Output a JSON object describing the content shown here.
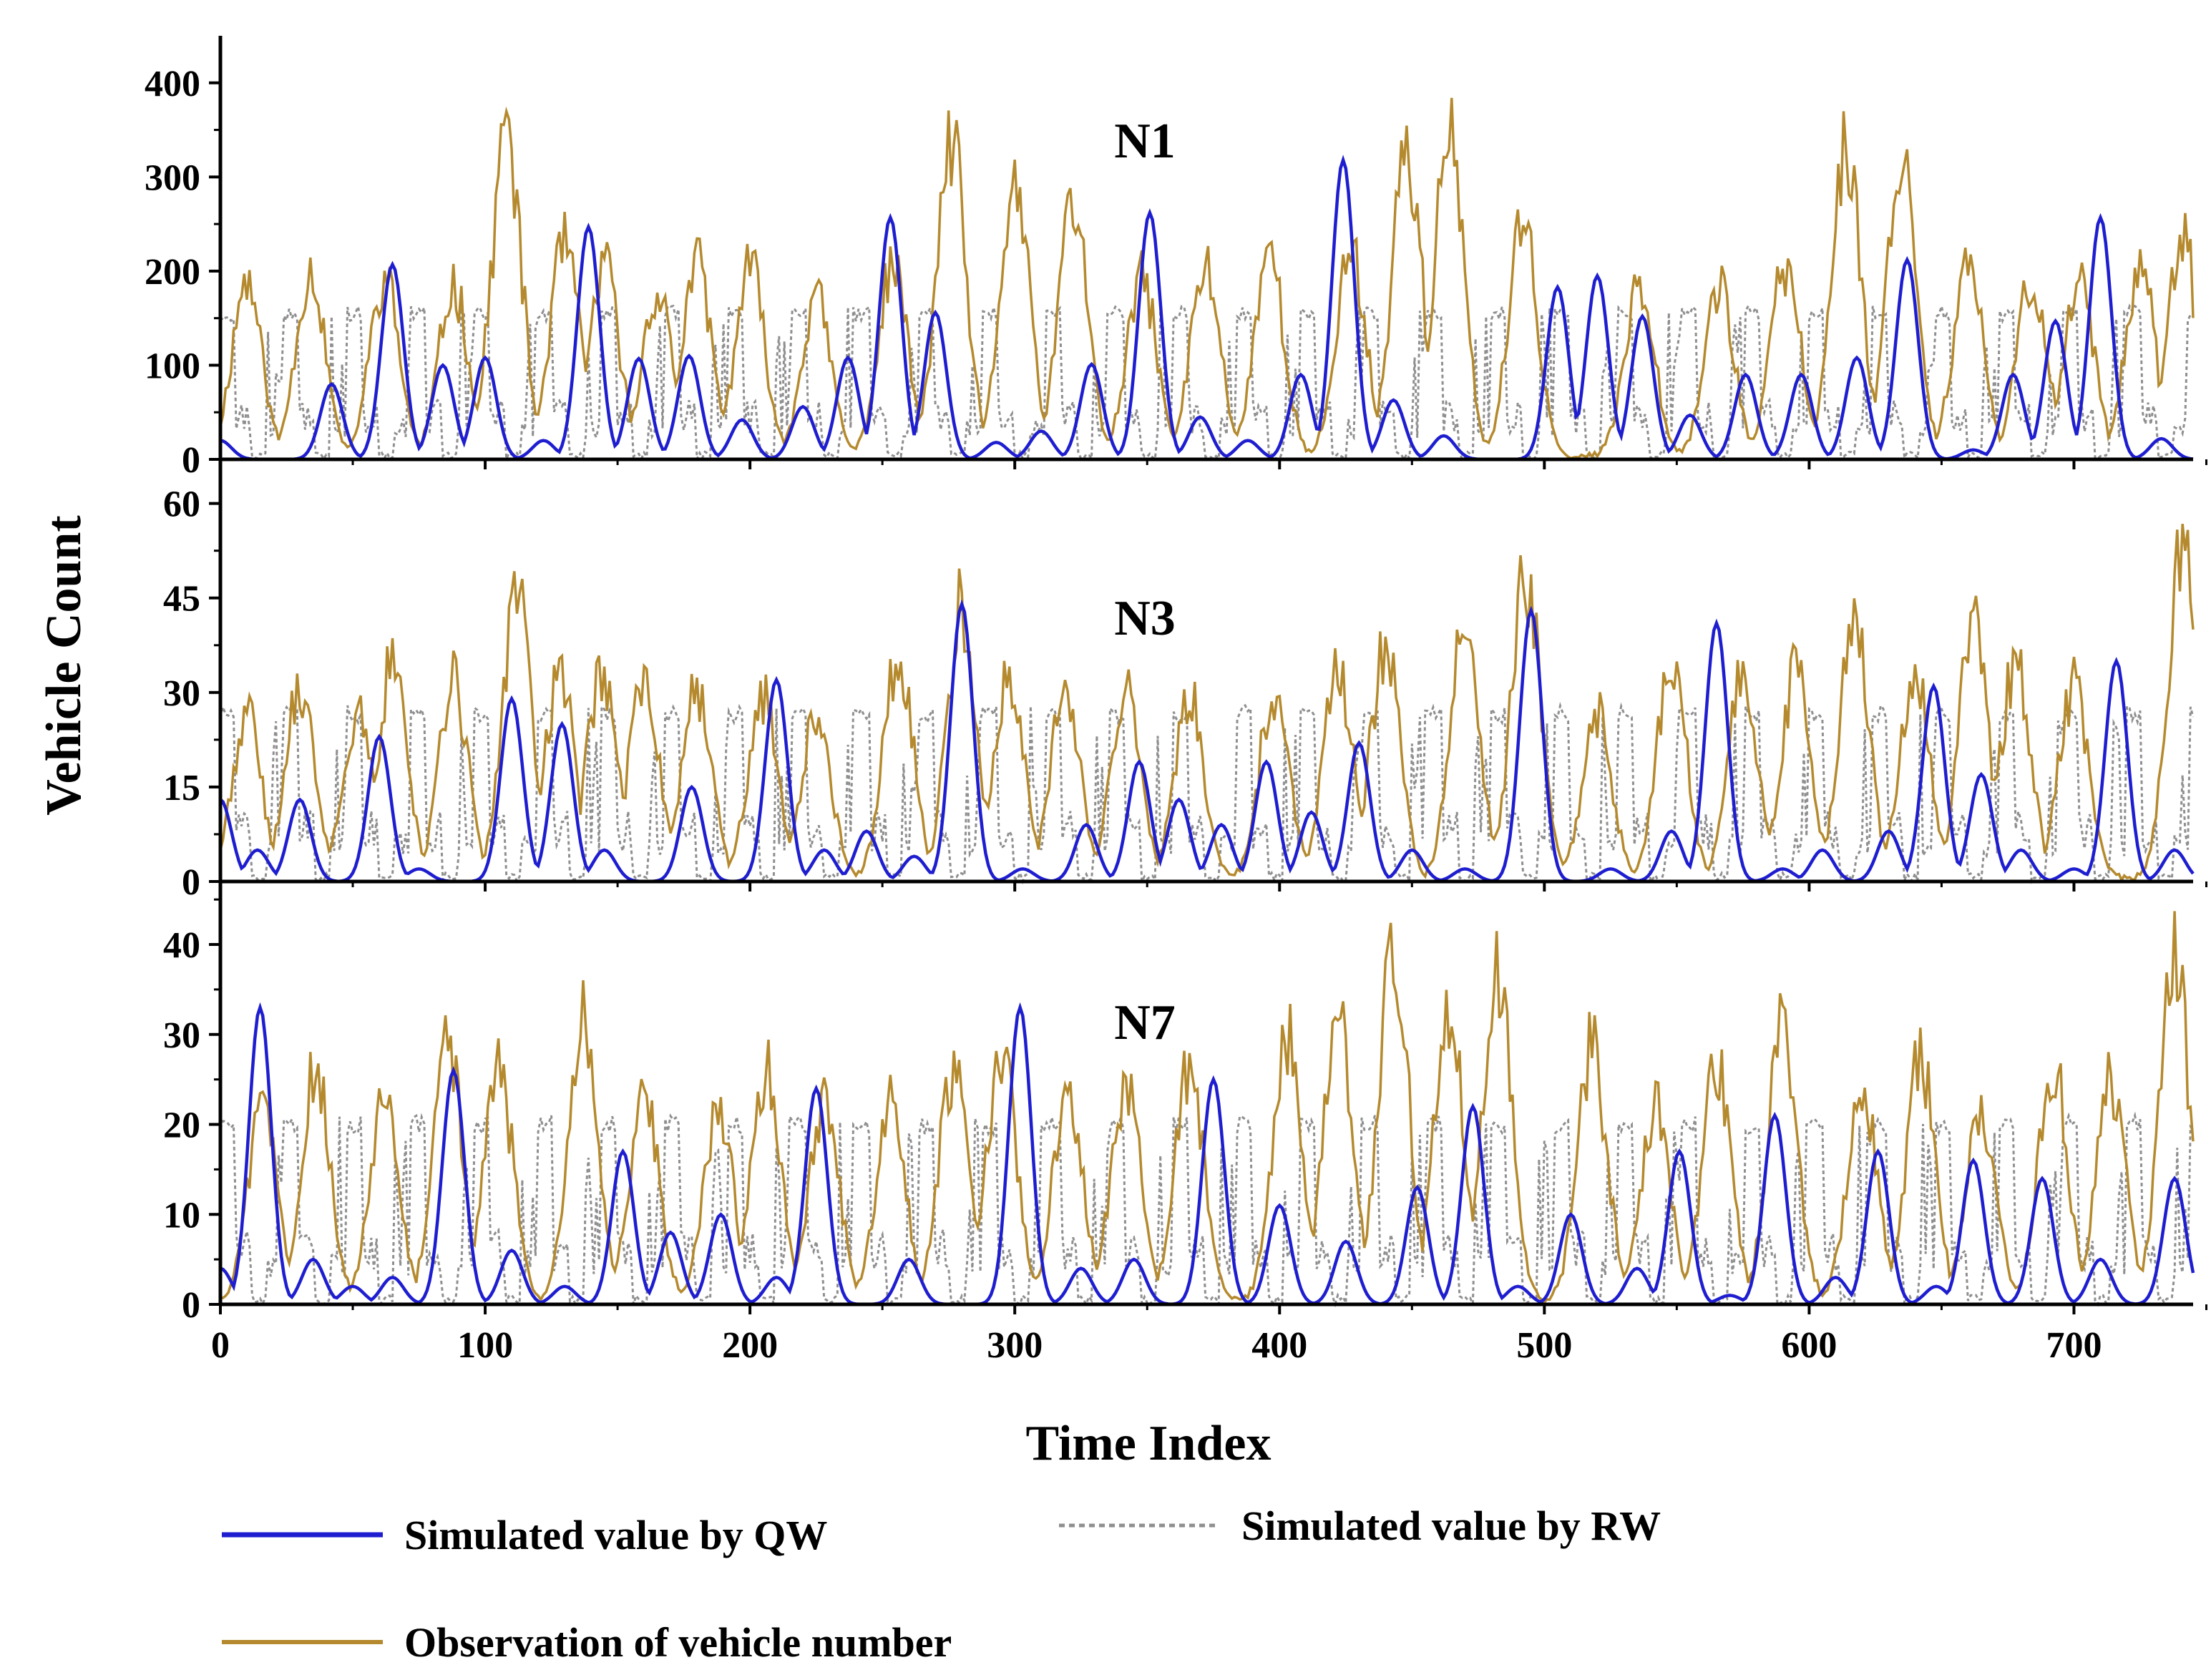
{
  "colors": {
    "qw": "#1e1ed0",
    "rw": "#8f8f8f",
    "obs": "#b58a2e",
    "axis": "#000000"
  },
  "axes": {
    "xlabel": "Time Index",
    "ylabel": "Vehicle Count"
  },
  "legend": {
    "qw": "Simulated value by QW",
    "rw": "Simulated value by RW",
    "obs": "Observation of vehicle number"
  },
  "chart_data": [
    {
      "type": "line",
      "label": "N1",
      "xlim": [
        0,
        745
      ],
      "ylim": [
        0,
        450
      ],
      "yticks": [
        0,
        100,
        200,
        300,
        400
      ],
      "xticks": [
        0,
        100,
        200,
        300,
        400,
        500,
        600,
        700
      ],
      "qw_peaks": [
        [
          0,
          20
        ],
        [
          42,
          80
        ],
        [
          65,
          207
        ],
        [
          84,
          100
        ],
        [
          100,
          108
        ],
        [
          122,
          20
        ],
        [
          139,
          247
        ],
        [
          158,
          107
        ],
        [
          177,
          110
        ],
        [
          197,
          42
        ],
        [
          220,
          56
        ],
        [
          237,
          108
        ],
        [
          253,
          257
        ],
        [
          270,
          156
        ],
        [
          293,
          18
        ],
        [
          310,
          30
        ],
        [
          329,
          101
        ],
        [
          351,
          262
        ],
        [
          370,
          45
        ],
        [
          388,
          20
        ],
        [
          408,
          90
        ],
        [
          424,
          318
        ],
        [
          443,
          63
        ],
        [
          462,
          25
        ],
        [
          505,
          183
        ],
        [
          520,
          195
        ],
        [
          537,
          152
        ],
        [
          555,
          47
        ],
        [
          576,
          90
        ],
        [
          597,
          90
        ],
        [
          618,
          108
        ],
        [
          637,
          212
        ],
        [
          662,
          10
        ],
        [
          677,
          90
        ],
        [
          693,
          147
        ],
        [
          710,
          257
        ],
        [
          733,
          22
        ]
      ],
      "obs_peaks": [
        [
          10,
          218
        ],
        [
          34,
          228
        ],
        [
          62,
          220
        ],
        [
          88,
          210
        ],
        [
          108,
          400
        ],
        [
          130,
          262
        ],
        [
          145,
          235
        ],
        [
          165,
          205
        ],
        [
          180,
          235
        ],
        [
          200,
          233
        ],
        [
          225,
          195
        ],
        [
          254,
          235
        ],
        [
          276,
          382
        ],
        [
          300,
          335
        ],
        [
          322,
          315
        ],
        [
          348,
          220
        ],
        [
          372,
          235
        ],
        [
          396,
          255
        ],
        [
          427,
          255
        ],
        [
          448,
          383
        ],
        [
          464,
          392
        ],
        [
          492,
          280
        ],
        [
          536,
          220
        ],
        [
          566,
          210
        ],
        [
          591,
          235
        ],
        [
          614,
          385
        ],
        [
          635,
          378
        ],
        [
          660,
          235
        ],
        [
          684,
          220
        ],
        [
          702,
          220
        ],
        [
          725,
          240
        ],
        [
          741,
          264
        ]
      ],
      "rw_level": 163,
      "rw_low": 45
    },
    {
      "type": "line",
      "label": "N3",
      "xlim": [
        0,
        745
      ],
      "ylim": [
        0,
        67
      ],
      "yticks": [
        0,
        15,
        30,
        45,
        60
      ],
      "xticks": [
        0,
        100,
        200,
        300,
        400,
        500,
        600,
        700
      ],
      "qw_peaks": [
        [
          0,
          13
        ],
        [
          14,
          5
        ],
        [
          30,
          13
        ],
        [
          60,
          23
        ],
        [
          75,
          2
        ],
        [
          110,
          29
        ],
        [
          129,
          25
        ],
        [
          145,
          5
        ],
        [
          178,
          15
        ],
        [
          210,
          32
        ],
        [
          228,
          5
        ],
        [
          244,
          8
        ],
        [
          262,
          4
        ],
        [
          280,
          44
        ],
        [
          303,
          2
        ],
        [
          327,
          9
        ],
        [
          347,
          19
        ],
        [
          362,
          13
        ],
        [
          378,
          9
        ],
        [
          395,
          19
        ],
        [
          412,
          11
        ],
        [
          430,
          22
        ],
        [
          450,
          5
        ],
        [
          470,
          2
        ],
        [
          495,
          43
        ],
        [
          525,
          2
        ],
        [
          548,
          8
        ],
        [
          565,
          41
        ],
        [
          590,
          2
        ],
        [
          605,
          5
        ],
        [
          630,
          8
        ],
        [
          647,
          31
        ],
        [
          665,
          17
        ],
        [
          680,
          5
        ],
        [
          700,
          2
        ],
        [
          716,
          35
        ],
        [
          738,
          5
        ]
      ],
      "obs_peaks": [
        [
          10,
          30
        ],
        [
          30,
          35
        ],
        [
          52,
          30
        ],
        [
          65,
          39
        ],
        [
          88,
          36
        ],
        [
          112,
          52
        ],
        [
          128,
          38
        ],
        [
          144,
          38
        ],
        [
          160,
          38
        ],
        [
          180,
          35
        ],
        [
          205,
          34
        ],
        [
          225,
          30
        ],
        [
          256,
          41
        ],
        [
          280,
          51
        ],
        [
          298,
          37
        ],
        [
          319,
          34
        ],
        [
          342,
          34
        ],
        [
          366,
          33
        ],
        [
          398,
          35
        ],
        [
          422,
          38
        ],
        [
          440,
          43
        ],
        [
          470,
          46
        ],
        [
          493,
          56
        ],
        [
          520,
          30
        ],
        [
          548,
          40
        ],
        [
          575,
          37
        ],
        [
          595,
          38
        ],
        [
          617,
          48
        ],
        [
          640,
          38
        ],
        [
          662,
          46
        ],
        [
          678,
          40
        ],
        [
          700,
          36
        ],
        [
          741,
          63
        ]
      ],
      "rw_level": 28,
      "rw_low": 8
    },
    {
      "type": "line",
      "label": "N7",
      "xlim": [
        0,
        745
      ],
      "ylim": [
        0,
        47
      ],
      "yticks": [
        0,
        10,
        20,
        30,
        40
      ],
      "xticks": [
        0,
        100,
        200,
        300,
        400,
        500,
        600,
        700
      ],
      "qw_peaks": [
        [
          0,
          4
        ],
        [
          15,
          33
        ],
        [
          35,
          5
        ],
        [
          50,
          2
        ],
        [
          65,
          3
        ],
        [
          88,
          26
        ],
        [
          110,
          6
        ],
        [
          130,
          2
        ],
        [
          152,
          17
        ],
        [
          170,
          8
        ],
        [
          189,
          10
        ],
        [
          210,
          3
        ],
        [
          225,
          24
        ],
        [
          260,
          5
        ],
        [
          302,
          33
        ],
        [
          325,
          4
        ],
        [
          345,
          5
        ],
        [
          375,
          25
        ],
        [
          400,
          11
        ],
        [
          425,
          7
        ],
        [
          452,
          13
        ],
        [
          473,
          22
        ],
        [
          490,
          2
        ],
        [
          510,
          10
        ],
        [
          535,
          4
        ],
        [
          551,
          17
        ],
        [
          570,
          1
        ],
        [
          587,
          21
        ],
        [
          610,
          3
        ],
        [
          626,
          17
        ],
        [
          648,
          2
        ],
        [
          662,
          16
        ],
        [
          688,
          14
        ],
        [
          710,
          5
        ],
        [
          738,
          14
        ]
      ],
      "obs_peaks": [
        [
          16,
          25
        ],
        [
          36,
          30
        ],
        [
          62,
          25
        ],
        [
          86,
          33
        ],
        [
          105,
          30
        ],
        [
          137,
          36
        ],
        [
          160,
          27
        ],
        [
          188,
          25
        ],
        [
          206,
          30
        ],
        [
          228,
          26
        ],
        [
          253,
          25
        ],
        [
          277,
          30
        ],
        [
          295,
          33
        ],
        [
          320,
          27
        ],
        [
          342,
          28
        ],
        [
          366,
          30
        ],
        [
          403,
          34
        ],
        [
          422,
          36
        ],
        [
          443,
          46
        ],
        [
          464,
          38
        ],
        [
          482,
          42
        ],
        [
          518,
          33
        ],
        [
          542,
          25
        ],
        [
          565,
          30
        ],
        [
          590,
          36
        ],
        [
          620,
          28
        ],
        [
          642,
          31
        ],
        [
          665,
          25
        ],
        [
          692,
          31
        ],
        [
          714,
          28
        ],
        [
          738,
          44
        ]
      ],
      "rw_level": 21,
      "rw_low": 6
    }
  ]
}
